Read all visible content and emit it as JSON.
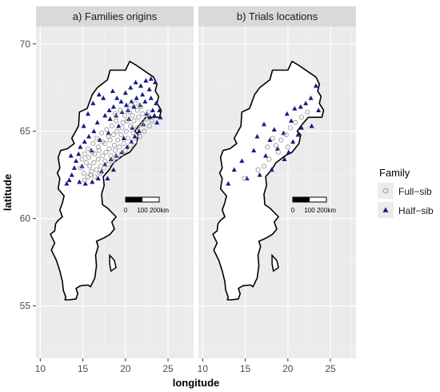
{
  "chart_data": {
    "type": "scatter",
    "xlabel": "longitude",
    "ylabel": "latitude",
    "xlim": [
      9.5,
      28
    ],
    "ylim": [
      52,
      71
    ],
    "x_ticks": [
      "10",
      "15",
      "20",
      "25"
    ],
    "y_ticks": [
      "55",
      "60",
      "65",
      "70"
    ],
    "grid": true,
    "legend": {
      "title": "Family",
      "placement": "right",
      "entries": [
        {
          "label": "Full−sib",
          "marker": "open-circle",
          "color": "#9a9a9a"
        },
        {
          "label": "Half−sib",
          "marker": "filled-triangle",
          "color": "#1a1a80"
        }
      ]
    },
    "scale_bar": {
      "labels": [
        "0",
        "100",
        "200km"
      ]
    },
    "panels": [
      {
        "title": "a) Families origins",
        "series": [
          {
            "name": "Half−sib",
            "marker": "triangle",
            "points": [
              [
                20.0,
                67.2
              ],
              [
                20.6,
                67.5
              ],
              [
                21.2,
                67.8
              ],
              [
                21.8,
                67.6
              ],
              [
                22.4,
                67.9
              ],
              [
                23.0,
                68.0
              ],
              [
                23.5,
                67.8
              ],
              [
                22.8,
                67.4
              ],
              [
                22.0,
                67.1
              ],
              [
                21.3,
                66.9
              ],
              [
                20.7,
                66.7
              ],
              [
                20.1,
                66.5
              ],
              [
                19.5,
                66.7
              ],
              [
                19.0,
                66.9
              ],
              [
                18.6,
                66.4
              ],
              [
                18.1,
                66.2
              ],
              [
                17.6,
                65.9
              ],
              [
                18.2,
                65.7
              ],
              [
                18.9,
                65.9
              ],
              [
                19.6,
                66.1
              ],
              [
                20.3,
                66.2
              ],
              [
                21.0,
                66.4
              ],
              [
                21.7,
                66.5
              ],
              [
                22.3,
                66.7
              ],
              [
                23.0,
                66.9
              ],
              [
                23.6,
                66.6
              ],
              [
                23.2,
                66.2
              ],
              [
                22.5,
                66.0
              ],
              [
                22.9,
                65.8
              ],
              [
                23.4,
                65.9
              ],
              [
                24.0,
                66.2
              ],
              [
                24.1,
                65.8
              ],
              [
                23.7,
                65.5
              ],
              [
                16.7,
                65.5
              ],
              [
                16.3,
                65.0
              ],
              [
                15.7,
                64.7
              ],
              [
                15.2,
                64.4
              ],
              [
                14.7,
                64.1
              ],
              [
                14.5,
                63.7
              ],
              [
                14.2,
                63.3
              ],
              [
                14.0,
                62.9
              ],
              [
                13.7,
                62.5
              ],
              [
                13.4,
                62.2
              ],
              [
                13.1,
                62.0
              ],
              [
                14.6,
                62.1
              ],
              [
                15.3,
                62.0
              ],
              [
                16.1,
                62.1
              ],
              [
                16.8,
                62.3
              ],
              [
                17.2,
                62.7
              ],
              [
                17.6,
                63.1
              ],
              [
                18.3,
                63.4
              ],
              [
                18.9,
                63.6
              ],
              [
                19.6,
                63.8
              ],
              [
                20.2,
                64.1
              ],
              [
                20.7,
                64.4
              ],
              [
                21.1,
                64.7
              ],
              [
                21.6,
                65.0
              ],
              [
                17.9,
                62.3
              ],
              [
                18.6,
                62.8
              ],
              [
                16.0,
                63.9
              ],
              [
                17.0,
                64.5
              ],
              [
                18.0,
                64.9
              ],
              [
                19.2,
                65.3
              ],
              [
                20.4,
                65.7
              ],
              [
                15.6,
                66.0
              ],
              [
                16.2,
                66.6
              ],
              [
                16.9,
                67.1
              ],
              [
                15.1,
                65.3
              ],
              [
                13.6,
                63.6
              ],
              [
                14.9,
                63.0
              ],
              [
                19.8,
                64.6
              ],
              [
                20.8,
                65.2
              ],
              [
                22.1,
                65.4
              ],
              [
                17.4,
                66.9
              ],
              [
                18.5,
                67.3
              ]
            ]
          },
          {
            "name": "Full−sib",
            "marker": "circle",
            "points": [
              [
                15.2,
                62.2
              ],
              [
                15.6,
                62.4
              ],
              [
                16.0,
                62.7
              ],
              [
                15.8,
                63.0
              ],
              [
                16.3,
                63.2
              ],
              [
                16.8,
                63.4
              ],
              [
                16.4,
                63.7
              ],
              [
                16.9,
                63.9
              ],
              [
                17.3,
                63.6
              ],
              [
                17.7,
                63.8
              ],
              [
                18.1,
                64.0
              ],
              [
                17.6,
                64.3
              ],
              [
                18.2,
                64.5
              ],
              [
                18.7,
                64.2
              ],
              [
                19.1,
                64.5
              ],
              [
                19.5,
                64.8
              ],
              [
                19.0,
                65.0
              ],
              [
                19.6,
                65.2
              ],
              [
                20.1,
                65.0
              ],
              [
                20.6,
                65.3
              ],
              [
                21.0,
                65.6
              ],
              [
                21.5,
                65.8
              ],
              [
                22.0,
                66.0
              ],
              [
                21.4,
                66.2
              ],
              [
                20.8,
                65.9
              ],
              [
                20.2,
                65.6
              ],
              [
                19.7,
                65.5
              ],
              [
                18.6,
                64.8
              ],
              [
                18.0,
                64.7
              ],
              [
                17.3,
                64.4
              ],
              [
                16.8,
                64.1
              ],
              [
                16.1,
                63.8
              ],
              [
                15.7,
                63.5
              ],
              [
                15.4,
                63.2
              ],
              [
                15.9,
                62.5
              ],
              [
                16.6,
                62.8
              ],
              [
                17.1,
                63.0
              ],
              [
                17.6,
                63.3
              ],
              [
                18.3,
                63.6
              ],
              [
                18.8,
                63.9
              ],
              [
                19.3,
                64.1
              ],
              [
                19.8,
                64.3
              ],
              [
                20.3,
                64.6
              ],
              [
                20.9,
                64.9
              ],
              [
                21.4,
                65.2
              ],
              [
                21.9,
                65.4
              ],
              [
                22.4,
                65.7
              ],
              [
                22.7,
                66.1
              ],
              [
                20.5,
                66.1
              ],
              [
                19.9,
                65.9
              ],
              [
                18.9,
                65.6
              ],
              [
                18.4,
                65.3
              ],
              [
                17.8,
                65.1
              ],
              [
                17.2,
                64.9
              ],
              [
                16.6,
                64.6
              ],
              [
                16.2,
                64.3
              ],
              [
                15.6,
                64.0
              ],
              [
                15.2,
                63.7
              ],
              [
                14.9,
                63.4
              ],
              [
                14.7,
                62.9
              ],
              [
                15.1,
                62.6
              ],
              [
                16.4,
                62.4
              ],
              [
                17.0,
                62.6
              ],
              [
                17.5,
                62.9
              ],
              [
                18.0,
                63.1
              ],
              [
                18.5,
                63.3
              ],
              [
                19.0,
                63.5
              ],
              [
                19.5,
                63.7
              ],
              [
                20.0,
                63.9
              ],
              [
                20.6,
                64.2
              ],
              [
                21.1,
                64.4
              ],
              [
                21.7,
                64.7
              ],
              [
                22.2,
                65.0
              ],
              [
                22.8,
                65.3
              ],
              [
                23.1,
                65.6
              ],
              [
                21.8,
                66.4
              ],
              [
                21.2,
                66.6
              ],
              [
                20.6,
                66.5
              ],
              [
                19.4,
                66.2
              ],
              [
                18.8,
                66.0
              ]
            ]
          }
        ]
      },
      {
        "title": "b) Trials locations",
        "series": [
          {
            "name": "Half−sib",
            "marker": "triangle",
            "points": [
              [
                23.3,
                67.6
              ],
              [
                22.7,
                66.9
              ],
              [
                22.1,
                66.6
              ],
              [
                21.5,
                66.4
              ],
              [
                23.6,
                66.2
              ],
              [
                20.8,
                66.3
              ],
              [
                19.9,
                66.0
              ],
              [
                20.4,
                65.6
              ],
              [
                22.8,
                65.3
              ],
              [
                21.6,
                65.2
              ],
              [
                17.2,
                65.4
              ],
              [
                18.4,
                65.1
              ],
              [
                19.5,
                64.9
              ],
              [
                16.4,
                64.7
              ],
              [
                17.9,
                64.5
              ],
              [
                20.6,
                64.4
              ],
              [
                18.8,
                64.0
              ],
              [
                16.0,
                63.9
              ],
              [
                17.4,
                63.6
              ],
              [
                13.7,
                62.8
              ],
              [
                16.7,
                62.5
              ],
              [
                15.2,
                62.3
              ],
              [
                13.0,
                62.0
              ],
              [
                18.1,
                62.8
              ],
              [
                19.6,
                63.4
              ],
              [
                21.2,
                64.8
              ],
              [
                14.6,
                63.3
              ],
              [
                20.1,
                63.8
              ]
            ]
          },
          {
            "name": "Full−sib",
            "marker": "circle",
            "points": [
              [
                22.3,
                66.1
              ],
              [
                21.6,
                65.8
              ],
              [
                20.9,
                65.5
              ],
              [
                20.3,
                65.2
              ],
              [
                19.8,
                64.8
              ],
              [
                19.2,
                64.5
              ],
              [
                18.6,
                64.2
              ],
              [
                18.2,
                64.6
              ],
              [
                17.6,
                64.1
              ],
              [
                17.8,
                63.4
              ],
              [
                17.2,
                63.0
              ],
              [
                16.5,
                62.8
              ],
              [
                14.9,
                62.3
              ],
              [
                18.9,
                63.8
              ],
              [
                20.0,
                64.1
              ]
            ]
          }
        ]
      }
    ]
  }
}
